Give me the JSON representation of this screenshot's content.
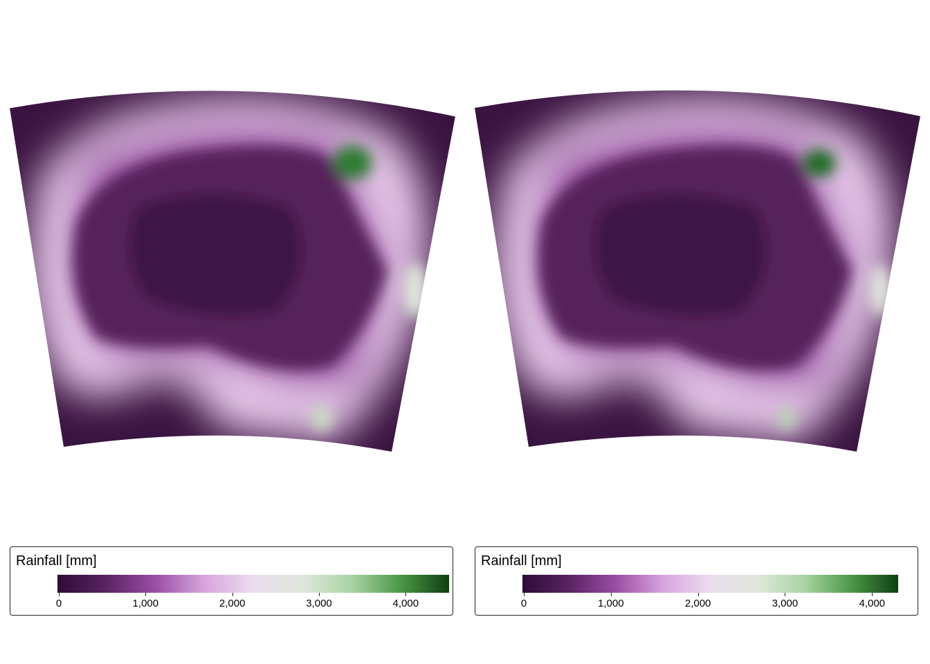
{
  "panels": [
    {
      "legend": {
        "title": "Rainfall [mm]",
        "max": 4500,
        "ticks": [
          {
            "value": 0,
            "label": "0"
          },
          {
            "value": 1000,
            "label": "1,000"
          },
          {
            "value": 2000,
            "label": "2,000"
          },
          {
            "value": 3000,
            "label": "3,000"
          },
          {
            "value": 4000,
            "label": "4,000"
          }
        ]
      }
    },
    {
      "legend": {
        "title": "Rainfall [mm]",
        "max": 4300,
        "ticks": [
          {
            "value": 0,
            "label": "0"
          },
          {
            "value": 1000,
            "label": "1,000"
          },
          {
            "value": 2000,
            "label": "2,000"
          },
          {
            "value": 3000,
            "label": "3,000"
          },
          {
            "value": 4000,
            "label": "4,000"
          }
        ]
      }
    }
  ],
  "colors": {
    "scale": [
      "#2d0d35",
      "#5a2363",
      "#9a4fa4",
      "#d7a5de",
      "#ecdcef",
      "#dfe8dc",
      "#a9d4a4",
      "#4c9848",
      "#0e400e"
    ],
    "ocean_far": "#3a1440",
    "ocean_near": "#e6c7ea",
    "land_dry": "#56205c",
    "coast": "#a25aab",
    "wet": "#2e7d32"
  }
}
